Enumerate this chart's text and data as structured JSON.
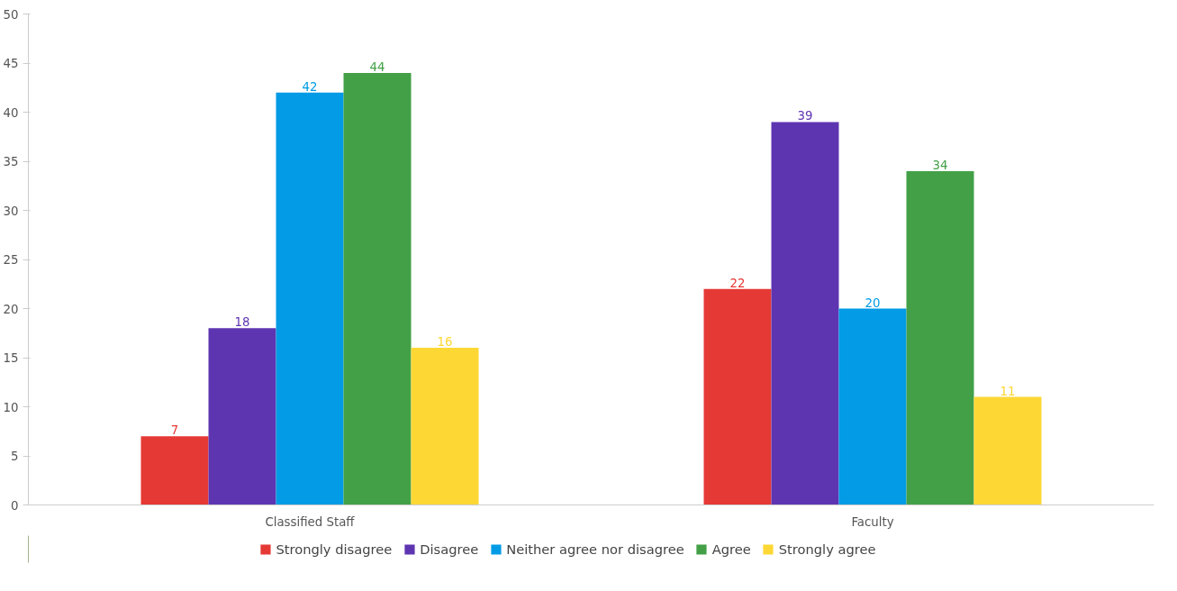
{
  "chart_data": {
    "type": "bar",
    "categories": [
      "Classified Staff",
      "Faculty"
    ],
    "series": [
      {
        "name": "Strongly disagree",
        "color": "#e53935",
        "values": [
          7,
          22
        ]
      },
      {
        "name": "Disagree",
        "color": "#5e35b1",
        "values": [
          18,
          39
        ]
      },
      {
        "name": "Neither agree nor disagree",
        "color": "#039be5",
        "values": [
          42,
          20
        ]
      },
      {
        "name": "Agree",
        "color": "#43a047",
        "values": [
          44,
          34
        ]
      },
      {
        "name": "Strongly agree",
        "color": "#fdd835",
        "values": [
          16,
          11
        ]
      }
    ],
    "ylim": [
      0,
      50
    ],
    "yticks": [
      0,
      5,
      10,
      15,
      20,
      25,
      30,
      35,
      40,
      45,
      50
    ],
    "grid": false,
    "data_labels": true,
    "legend": "bottom"
  }
}
